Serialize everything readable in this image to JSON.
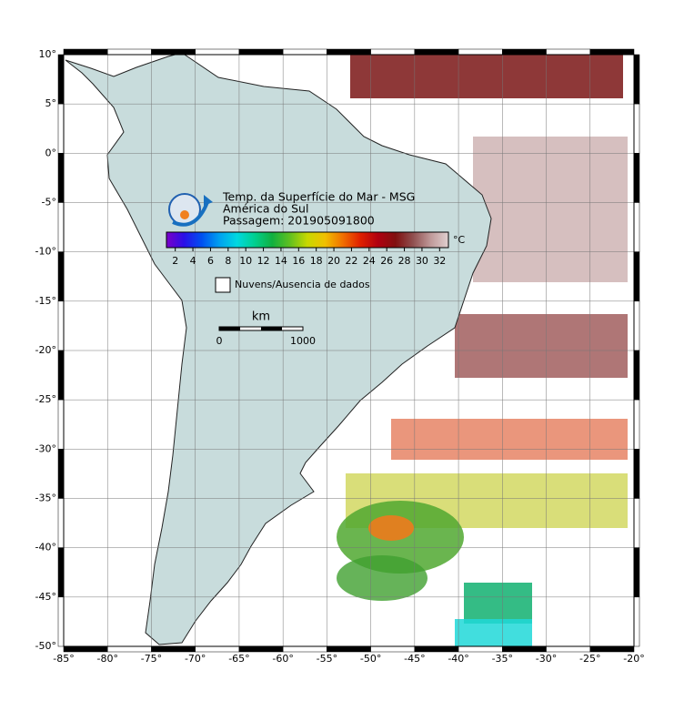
{
  "header": {
    "lines": [
      "Temp. da Superfície do Mar - MSG",
      "América do Sul",
      "Passagem: 201905091800"
    ]
  },
  "colorbar": {
    "range": [
      1,
      33
    ],
    "ticks": [
      2,
      4,
      6,
      8,
      10,
      12,
      14,
      16,
      18,
      20,
      22,
      24,
      26,
      28,
      30,
      32
    ],
    "unit": "°C",
    "colors": [
      "#7a00c8",
      "#2a10e8",
      "#0050f0",
      "#00a0f0",
      "#00d8e0",
      "#00d090",
      "#10b040",
      "#60c020",
      "#c8d800",
      "#f0c000",
      "#f07000",
      "#e02000",
      "#b00010",
      "#801010",
      "#905050",
      "#c09a9a",
      "#e0d0d0"
    ]
  },
  "legend": {
    "label": "Nuvens/Ausencia de dados"
  },
  "scale_bar": {
    "unit": "km",
    "labels": [
      "0",
      "1000"
    ]
  },
  "map": {
    "lon_range": [
      -85,
      -20
    ],
    "lat_range": [
      -50,
      10
    ],
    "lon_ticks": [
      {
        "value": -85,
        "label": "-85°"
      },
      {
        "value": -80,
        "label": "-80°"
      },
      {
        "value": -75,
        "label": "-75°"
      },
      {
        "value": -70,
        "label": "-70°"
      },
      {
        "value": -65,
        "label": "-65°"
      },
      {
        "value": -60,
        "label": "-60°"
      },
      {
        "value": -55,
        "label": "-55°"
      },
      {
        "value": -50,
        "label": "-50°"
      },
      {
        "value": -45,
        "label": "-45°"
      },
      {
        "value": -40,
        "label": "-40°"
      },
      {
        "value": -35,
        "label": "-35°"
      },
      {
        "value": -30,
        "label": "-30°"
      },
      {
        "value": -25,
        "label": "-25°"
      },
      {
        "value": -20,
        "label": "-20°"
      }
    ],
    "lat_ticks": [
      {
        "value": 10,
        "label": "10°"
      },
      {
        "value": 5,
        "label": "5°"
      },
      {
        "value": 0,
        "label": "0°"
      },
      {
        "value": -5,
        "label": "-5°"
      },
      {
        "value": -10,
        "label": "-10°"
      },
      {
        "value": -15,
        "label": "-15°"
      },
      {
        "value": -20,
        "label": "-20°"
      },
      {
        "value": -25,
        "label": "-25°"
      },
      {
        "value": -30,
        "label": "-30°"
      },
      {
        "value": -35,
        "label": "-35°"
      },
      {
        "value": -40,
        "label": "-40°"
      },
      {
        "value": -45,
        "label": "-45°"
      },
      {
        "value": -50,
        "label": "-50°"
      }
    ]
  }
}
